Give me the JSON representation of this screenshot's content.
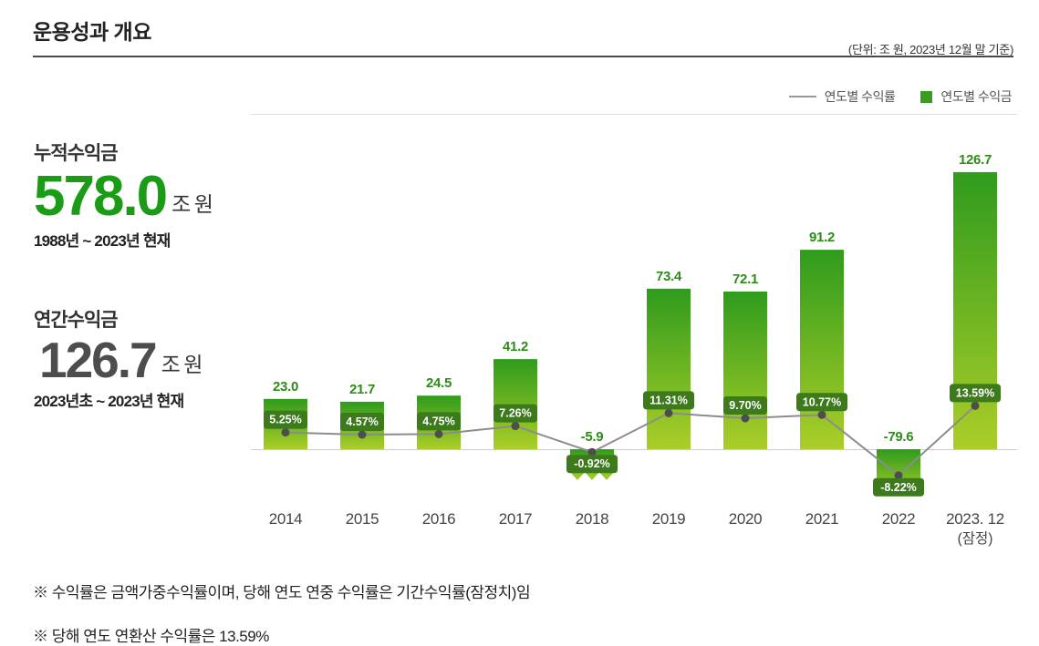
{
  "header": {
    "title": "운용성과 개요",
    "unit_note": "(단위: 조 원, 2023년 12월 말 기준)"
  },
  "stats": {
    "cumulative": {
      "label": "누적수익금",
      "value": "578.0",
      "unit": "조 원",
      "period": "1988년 ~ 2023년 현재"
    },
    "annual": {
      "label": "연간수익금",
      "value": "126.7",
      "unit": "조 원",
      "period": "2023년초 ~ 2023년 현재"
    }
  },
  "chart_data": {
    "type": "bar",
    "title": "",
    "categories": [
      "2014",
      "2015",
      "2016",
      "2017",
      "2018",
      "2019",
      "2020",
      "2021",
      "2022",
      "2023. 12"
    ],
    "category_subs": [
      "",
      "",
      "",
      "",
      "",
      "",
      "",
      "",
      "",
      "(잠정)"
    ],
    "series": [
      {
        "name": "연도별 수익금",
        "type": "bar",
        "unit": "조 원",
        "values": [
          23.0,
          21.7,
          24.5,
          41.2,
          -5.9,
          73.4,
          72.1,
          91.2,
          -79.6,
          126.7
        ],
        "labels": [
          "23.0",
          "21.7",
          "24.5",
          "41.2",
          "-5.9",
          "73.4",
          "72.1",
          "91.2",
          "-79.6",
          "126.7"
        ]
      },
      {
        "name": "연도별 수익률",
        "type": "line",
        "unit": "%",
        "values": [
          5.25,
          4.57,
          4.75,
          7.26,
          -0.92,
          11.31,
          9.7,
          10.77,
          -8.22,
          13.59
        ],
        "labels": [
          "5.25%",
          "4.57%",
          "4.75%",
          "7.26%",
          "-0.92%",
          "11.31%",
          "9.70%",
          "10.77%",
          "-8.22%",
          "13.59%"
        ]
      }
    ],
    "ylim_bar": [
      -80,
      130
    ],
    "grid": false,
    "legend_position": "top-right",
    "colors": {
      "bar_top": "#2f9b1d",
      "bar_bottom": "#abce28",
      "badge_bg": "#3c7a1b",
      "badge_text": "#ffffff",
      "line": "#8c8c8c",
      "dot": "#4d4d4d",
      "value_label": "#2e8b1a",
      "axis": "#cccccc",
      "accent_green": "#1a9c17"
    }
  },
  "footnotes": [
    "※ 수익률은 금액가중수익률이며, 당해 연도 연중 수익률은 기간수익률(잠정치)임",
    "※ 당해 연도 연환산 수익률은 13.59%"
  ]
}
